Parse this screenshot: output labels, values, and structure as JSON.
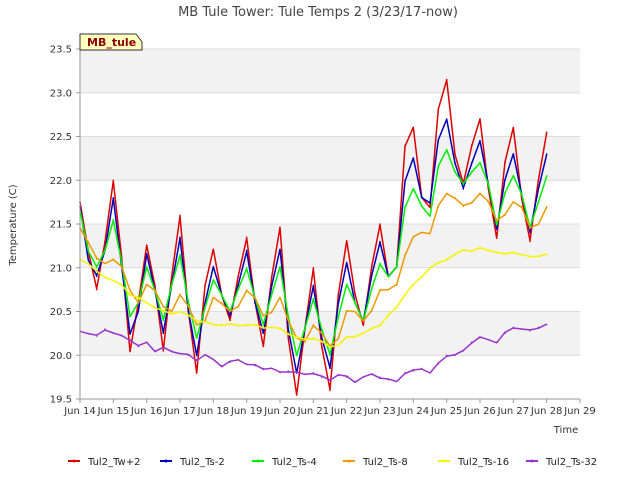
{
  "chart_data": {
    "type": "line",
    "title": "MB Tule Tower: Tule Temps 2 (3/23/17-now)",
    "xlabel": "Time",
    "ylabel": "Temperature (C)",
    "site_label": "MB_tule",
    "xlim": [
      14,
      29
    ],
    "ylim": [
      19.5,
      23.5
    ],
    "x_ticks": [
      14,
      15,
      16,
      17,
      18,
      19,
      20,
      21,
      22,
      23,
      24,
      25,
      26,
      27,
      28,
      29
    ],
    "x_tick_labels": [
      "Jun 14",
      "Jun 15",
      "Jun 16",
      "Jun 17",
      "Jun 18",
      "Jun 19",
      "Jun 20",
      "Jun 21",
      "Jun 22",
      "Jun 23",
      "Jun 24",
      "Jun 25",
      "Jun 26",
      "Jun 27",
      "Jun 28",
      "Jun 29"
    ],
    "y_ticks": [
      19.5,
      20.0,
      20.5,
      21.0,
      21.5,
      22.0,
      22.5,
      23.0,
      23.5
    ],
    "y_tick_labels": [
      "19.5",
      "20.0",
      "20.5",
      "21.0",
      "21.5",
      "22.0",
      "22.5",
      "23.0",
      "23.5"
    ],
    "legend_position": "bottom",
    "series": [
      {
        "name": "Tul2_Tw+2",
        "color": "#dd0000",
        "x": [
          14.0,
          14.25,
          14.5,
          14.75,
          15.0,
          15.25,
          15.5,
          15.75,
          16.0,
          16.25,
          16.5,
          16.75,
          17.0,
          17.25,
          17.5,
          17.75,
          18.0,
          18.25,
          18.5,
          18.75,
          19.0,
          19.25,
          19.5,
          19.75,
          20.0,
          20.25,
          20.5,
          20.75,
          21.0,
          21.25,
          21.5,
          21.75,
          22.0,
          22.25,
          22.5,
          22.75,
          23.0,
          23.25,
          23.5,
          23.75,
          24.0,
          24.25,
          24.5,
          24.75,
          25.0,
          25.25,
          25.5,
          25.75,
          26.0,
          26.25,
          26.5,
          26.75,
          27.0,
          27.25,
          27.5,
          27.75,
          28.0
        ],
        "values": [
          21.75,
          21.2,
          20.75,
          21.3,
          22.0,
          21.1,
          20.05,
          20.6,
          21.25,
          20.8,
          20.05,
          20.9,
          21.6,
          20.5,
          19.8,
          20.8,
          21.2,
          20.7,
          20.4,
          20.9,
          21.35,
          20.6,
          20.1,
          20.9,
          21.45,
          20.2,
          19.55,
          20.3,
          21.0,
          20.1,
          19.6,
          20.7,
          21.3,
          20.7,
          20.35,
          21.0,
          21.5,
          20.9,
          21.0,
          22.4,
          22.6,
          21.8,
          21.7,
          22.8,
          23.15,
          22.3,
          21.95,
          22.4,
          22.7,
          21.9,
          21.35,
          22.2,
          22.6,
          21.8,
          21.3,
          22.0,
          22.55
        ]
      },
      {
        "name": "Tul2_Ts-2",
        "color": "#0000bb",
        "x": [
          14.0,
          14.25,
          14.5,
          14.75,
          15.0,
          15.25,
          15.5,
          15.75,
          16.0,
          16.25,
          16.5,
          16.75,
          17.0,
          17.25,
          17.5,
          17.75,
          18.0,
          18.25,
          18.5,
          18.75,
          19.0,
          19.25,
          19.5,
          19.75,
          20.0,
          20.25,
          20.5,
          20.75,
          21.0,
          21.25,
          21.5,
          21.75,
          22.0,
          22.25,
          22.5,
          22.75,
          23.0,
          23.25,
          23.5,
          23.75,
          24.0,
          24.25,
          24.5,
          24.75,
          25.0,
          25.25,
          25.5,
          25.75,
          26.0,
          26.25,
          26.5,
          26.75,
          27.0,
          27.25,
          27.5,
          27.75,
          28.0
        ],
        "values": [
          21.7,
          21.1,
          20.9,
          21.2,
          21.8,
          21.0,
          20.25,
          20.5,
          21.15,
          20.75,
          20.25,
          20.8,
          21.35,
          20.5,
          20.0,
          20.6,
          21.0,
          20.7,
          20.45,
          20.8,
          21.2,
          20.6,
          20.25,
          20.8,
          21.2,
          20.3,
          19.8,
          20.3,
          20.8,
          20.2,
          19.85,
          20.6,
          21.05,
          20.6,
          20.4,
          20.9,
          21.3,
          20.9,
          21.0,
          22.0,
          22.25,
          21.8,
          21.75,
          22.45,
          22.7,
          22.2,
          21.9,
          22.2,
          22.45,
          21.95,
          21.45,
          22.0,
          22.3,
          21.85,
          21.4,
          21.9,
          22.3
        ]
      },
      {
        "name": "Tul2_Ts-4",
        "color": "#00ee00",
        "x": [
          14.0,
          14.25,
          14.5,
          14.75,
          15.0,
          15.25,
          15.5,
          15.75,
          16.0,
          16.25,
          16.5,
          16.75,
          17.0,
          17.25,
          17.5,
          17.75,
          18.0,
          18.25,
          18.5,
          18.75,
          19.0,
          19.25,
          19.5,
          19.75,
          20.0,
          20.25,
          20.5,
          20.75,
          21.0,
          21.25,
          21.5,
          21.75,
          22.0,
          22.25,
          22.5,
          22.75,
          23.0,
          23.25,
          23.5,
          23.75,
          24.0,
          24.25,
          24.5,
          24.75,
          25.0,
          25.25,
          25.5,
          25.75,
          26.0,
          26.25,
          26.5,
          26.75,
          27.0,
          27.25,
          27.5,
          27.75,
          28.0
        ],
        "values": [
          21.65,
          21.2,
          21.0,
          21.2,
          21.55,
          21.05,
          20.45,
          20.6,
          21.0,
          20.75,
          20.4,
          20.8,
          21.15,
          20.6,
          20.2,
          20.55,
          20.85,
          20.7,
          20.5,
          20.75,
          21.0,
          20.65,
          20.35,
          20.7,
          21.0,
          20.45,
          20.0,
          20.3,
          20.65,
          20.3,
          20.0,
          20.45,
          20.8,
          20.6,
          20.4,
          20.75,
          21.05,
          20.9,
          21.0,
          21.7,
          21.9,
          21.7,
          21.6,
          22.15,
          22.35,
          22.1,
          21.95,
          22.1,
          22.2,
          21.95,
          21.5,
          21.85,
          22.05,
          21.85,
          21.45,
          21.75,
          22.05
        ]
      },
      {
        "name": "Tul2_Ts-8",
        "color": "#ee9900",
        "x": [
          14.0,
          14.25,
          14.5,
          14.75,
          15.0,
          15.25,
          15.5,
          15.75,
          16.0,
          16.25,
          16.5,
          16.75,
          17.0,
          17.25,
          17.5,
          17.75,
          18.0,
          18.25,
          18.5,
          18.75,
          19.0,
          19.25,
          19.5,
          19.75,
          20.0,
          20.25,
          20.5,
          20.75,
          21.0,
          21.25,
          21.5,
          21.75,
          22.0,
          22.25,
          22.5,
          22.75,
          23.0,
          23.25,
          23.5,
          23.75,
          24.0,
          24.25,
          24.5,
          24.75,
          25.0,
          25.25,
          25.5,
          25.75,
          26.0,
          26.25,
          26.5,
          26.75,
          27.0,
          27.25,
          27.5,
          27.75,
          28.0
        ],
        "values": [
          21.45,
          21.3,
          21.1,
          21.05,
          21.1,
          21.0,
          20.75,
          20.6,
          20.8,
          20.75,
          20.55,
          20.5,
          20.7,
          20.55,
          20.35,
          20.4,
          20.65,
          20.6,
          20.5,
          20.55,
          20.75,
          20.65,
          20.45,
          20.5,
          20.65,
          20.4,
          20.2,
          20.15,
          20.35,
          20.25,
          20.1,
          20.2,
          20.5,
          20.5,
          20.4,
          20.5,
          20.75,
          20.75,
          20.8,
          21.15,
          21.35,
          21.4,
          21.4,
          21.7,
          21.85,
          21.8,
          21.7,
          21.75,
          21.85,
          21.75,
          21.55,
          21.6,
          21.75,
          21.7,
          21.45,
          21.5,
          21.7
        ]
      },
      {
        "name": "Tul2_Ts-16",
        "color": "#f5f500",
        "x": [
          14.0,
          14.25,
          14.5,
          14.75,
          15.0,
          15.25,
          15.5,
          15.75,
          16.0,
          16.25,
          16.5,
          16.75,
          17.0,
          17.25,
          17.5,
          17.75,
          18.0,
          18.25,
          18.5,
          18.75,
          19.0,
          19.25,
          19.5,
          19.75,
          20.0,
          20.25,
          20.5,
          20.75,
          21.0,
          21.25,
          21.5,
          21.75,
          22.0,
          22.25,
          22.5,
          22.75,
          23.0,
          23.25,
          23.5,
          23.75,
          24.0,
          24.25,
          24.5,
          24.75,
          25.0,
          25.25,
          25.5,
          25.75,
          26.0,
          26.25,
          26.5,
          26.75,
          27.0,
          27.25,
          27.5,
          27.75,
          28.0
        ],
        "values": [
          21.1,
          21.05,
          20.95,
          20.9,
          20.85,
          20.8,
          20.7,
          20.65,
          20.6,
          20.55,
          20.5,
          20.48,
          20.5,
          20.45,
          20.4,
          20.38,
          20.35,
          20.35,
          20.35,
          20.34,
          20.35,
          20.34,
          20.32,
          20.32,
          20.3,
          20.25,
          20.2,
          20.18,
          20.2,
          20.15,
          20.1,
          20.12,
          20.2,
          20.22,
          20.25,
          20.3,
          20.35,
          20.45,
          20.55,
          20.7,
          20.8,
          20.9,
          21.0,
          21.05,
          21.1,
          21.15,
          21.2,
          21.2,
          21.22,
          21.2,
          21.18,
          21.15,
          21.18,
          21.15,
          21.12,
          21.14,
          21.15
        ]
      },
      {
        "name": "Tul2_Ts-32",
        "color": "#9933cc",
        "x": [
          14.0,
          14.25,
          14.5,
          14.75,
          15.0,
          15.25,
          15.5,
          15.75,
          16.0,
          16.25,
          16.5,
          16.75,
          17.0,
          17.25,
          17.5,
          17.75,
          18.0,
          18.25,
          18.5,
          18.75,
          19.0,
          19.25,
          19.5,
          19.75,
          20.0,
          20.25,
          20.5,
          20.75,
          21.0,
          21.25,
          21.5,
          21.75,
          22.0,
          22.25,
          22.5,
          22.75,
          23.0,
          23.25,
          23.5,
          23.75,
          24.0,
          24.25,
          24.5,
          24.75,
          25.0,
          25.25,
          25.5,
          25.75,
          26.0,
          26.25,
          26.5,
          26.75,
          27.0,
          27.25,
          27.5,
          27.75,
          28.0
        ],
        "values": [
          20.28,
          20.25,
          20.22,
          20.3,
          20.25,
          20.22,
          20.18,
          20.1,
          20.15,
          20.05,
          20.08,
          20.05,
          20.02,
          20.0,
          19.95,
          20.0,
          19.95,
          19.88,
          19.92,
          19.95,
          19.9,
          19.88,
          19.85,
          19.85,
          19.8,
          19.82,
          19.8,
          19.78,
          19.8,
          19.75,
          19.72,
          19.78,
          19.75,
          19.7,
          19.75,
          19.78,
          19.75,
          19.72,
          19.7,
          19.8,
          19.82,
          19.85,
          19.8,
          19.9,
          20.0,
          20.0,
          20.05,
          20.15,
          20.2,
          20.18,
          20.15,
          20.25,
          20.32,
          20.3,
          20.28,
          20.32,
          20.35
        ]
      }
    ]
  }
}
